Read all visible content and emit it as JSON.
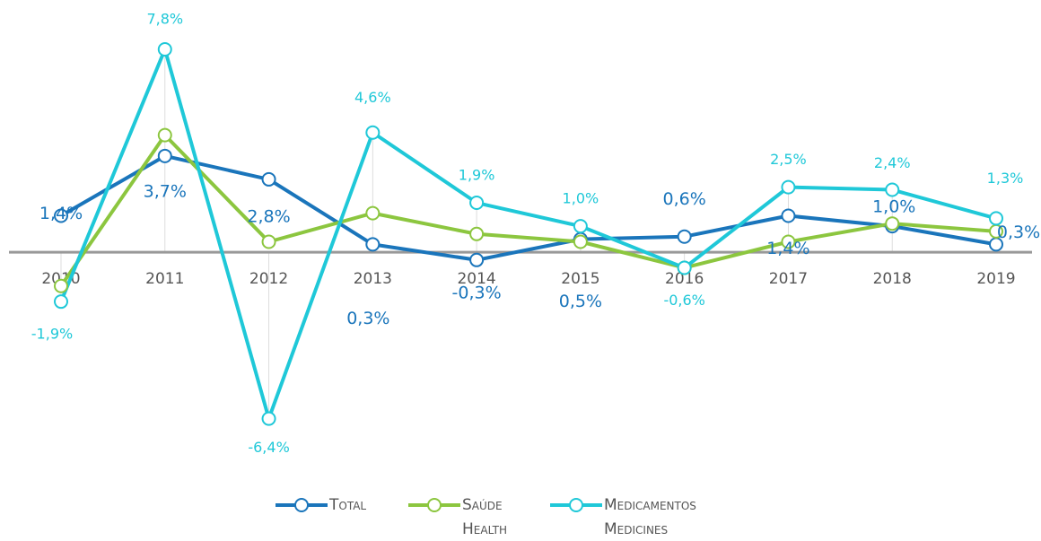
{
  "chart_data": {
    "type": "line",
    "categories": [
      "2010",
      "2011",
      "2012",
      "2013",
      "2014",
      "2015",
      "2016",
      "2017",
      "2018",
      "2019"
    ],
    "ylim": [
      -7.8,
      9
    ],
    "series": [
      {
        "name": "Total",
        "color": "#1a75bb",
        "values": [
          1.4,
          3.7,
          2.8,
          0.3,
          -0.3,
          0.5,
          0.6,
          1.4,
          1.0,
          0.3
        ],
        "value_labels": [
          "1,4%",
          "3,7%",
          "2,8%",
          "0,3%",
          "-0,3%",
          "0,5%",
          "0,6%",
          "1,4%",
          "1,0%",
          "0,3%"
        ]
      },
      {
        "name": "Saúde Health",
        "color": "#8cc63f",
        "values": [
          -1.3,
          4.5,
          0.4,
          1.5,
          0.7,
          0.4,
          -0.6,
          0.4,
          1.1,
          0.8
        ]
      },
      {
        "name": "Medicamentos Medicines",
        "color": "#1fc8d8",
        "values": [
          -1.9,
          7.8,
          -6.4,
          4.6,
          1.9,
          1.0,
          -0.6,
          2.5,
          2.4,
          1.3
        ],
        "value_labels": [
          "-1,9%",
          "7,8%",
          "-6,4%",
          "4,6%",
          "1,9%",
          "1,0%",
          "-0,6%",
          "2,5%",
          "2,4%",
          "1,3%"
        ]
      }
    ]
  }
}
